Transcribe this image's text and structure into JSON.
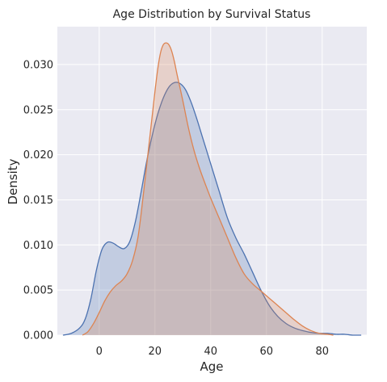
{
  "chart_data": {
    "type": "area",
    "title": "Age Distribution by Survival Status",
    "xlabel": "Age",
    "ylabel": "Density",
    "xlim": [
      -15,
      96
    ],
    "ylim": [
      0,
      0.0342
    ],
    "xticks": [
      0,
      20,
      40,
      60,
      80
    ],
    "yticks": [
      0.0,
      0.005,
      0.01,
      0.015,
      0.02,
      0.025,
      0.03
    ],
    "ytick_labels": [
      "0.000",
      "0.005",
      "0.010",
      "0.015",
      "0.020",
      "0.025",
      "0.030"
    ],
    "grid": true,
    "legend": null,
    "series": [
      {
        "color": "#4c72b0",
        "x": [
          -13,
          -10,
          -7,
          -5,
          -3,
          -1,
          1,
          3,
          5,
          7,
          9,
          11,
          13,
          15,
          17,
          19,
          21,
          23,
          25,
          27,
          29,
          31,
          33,
          35,
          37,
          40,
          43,
          46,
          49,
          52,
          55,
          58,
          61,
          64,
          67,
          70,
          73,
          76,
          79,
          82,
          85,
          88,
          91,
          94
        ],
        "values": [
          0.0,
          0.0002,
          0.0008,
          0.0018,
          0.004,
          0.0072,
          0.0095,
          0.0103,
          0.0102,
          0.0098,
          0.0096,
          0.0104,
          0.0126,
          0.0158,
          0.0192,
          0.0221,
          0.0245,
          0.0263,
          0.0275,
          0.028,
          0.0279,
          0.0272,
          0.0258,
          0.024,
          0.022,
          0.019,
          0.016,
          0.013,
          0.0108,
          0.009,
          0.007,
          0.005,
          0.0033,
          0.0021,
          0.0013,
          0.0008,
          0.0005,
          0.0003,
          0.0002,
          0.0002,
          0.0001,
          0.0001,
          0.0,
          0.0
        ]
      },
      {
        "color": "#dd8452",
        "x": [
          -6,
          -4,
          -2,
          0,
          2,
          4,
          6,
          8,
          10,
          12,
          14,
          16,
          18,
          20,
          21,
          22,
          23,
          24,
          25,
          26,
          27,
          28,
          30,
          32,
          34,
          36,
          38,
          40,
          43,
          46,
          49,
          52,
          55,
          58,
          61,
          64,
          67,
          70,
          73,
          76,
          79,
          82,
          84
        ],
        "values": [
          0.0,
          0.0004,
          0.0013,
          0.0025,
          0.0038,
          0.0048,
          0.0055,
          0.006,
          0.0068,
          0.0083,
          0.011,
          0.016,
          0.0215,
          0.027,
          0.0295,
          0.0313,
          0.0322,
          0.0324,
          0.0322,
          0.0315,
          0.0303,
          0.0288,
          0.026,
          0.023,
          0.0205,
          0.0185,
          0.0168,
          0.0152,
          0.013,
          0.0108,
          0.0086,
          0.0068,
          0.0057,
          0.0049,
          0.0041,
          0.0033,
          0.0025,
          0.0017,
          0.001,
          0.0005,
          0.0002,
          0.0001,
          0.0
        ]
      }
    ]
  }
}
